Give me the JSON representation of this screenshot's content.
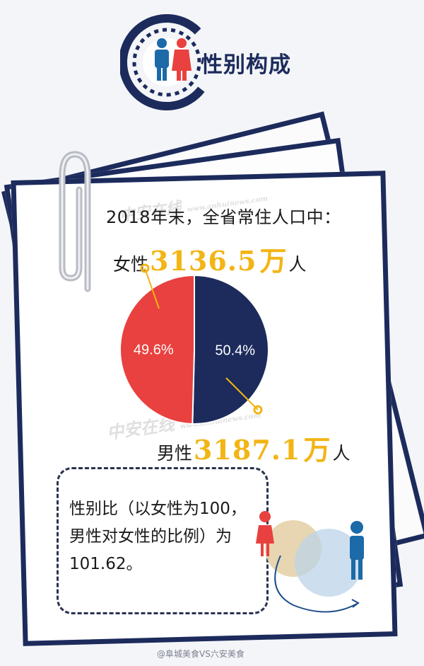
{
  "header": {
    "title": "性别构成",
    "icon": "male-female-people-icon"
  },
  "intro": {
    "line1": "2018年末，全省常住人口中：",
    "female_prefix": "女性",
    "female_value": "3136.5",
    "female_unit": "万",
    "female_suffix": "人",
    "male_prefix": "男性",
    "male_value": "3187.1",
    "male_unit": "万",
    "male_suffix": "人"
  },
  "chart_data": {
    "type": "pie",
    "slices": [
      {
        "label": "男性",
        "value": 50.4,
        "display": "50.4%",
        "color": "#1c2b5c"
      },
      {
        "label": "女性",
        "value": 49.6,
        "display": "49.6%",
        "color": "#e8413f"
      }
    ]
  },
  "ratio": {
    "text": "性别比（以女性为100，男性对女性的比例）为101.62。"
  },
  "watermark": {
    "brand": "中安在线",
    "url": "www.anhuinews.com"
  },
  "footer": {
    "weibo": "@阜城美食VS六安美食"
  },
  "colors": {
    "navy": "#1c2b5c",
    "red": "#e8413f",
    "gold": "#f2b515"
  }
}
